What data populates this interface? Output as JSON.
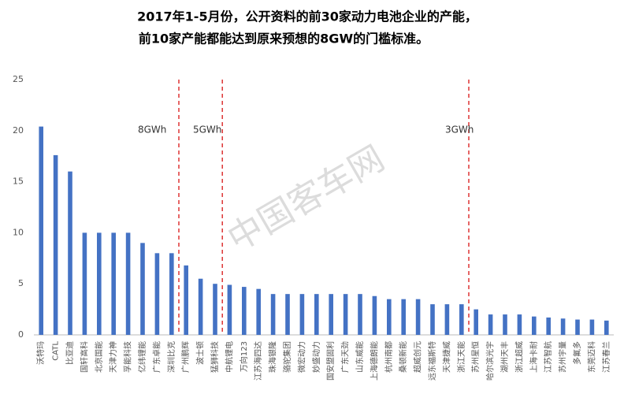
{
  "chart_data": {
    "type": "bar",
    "title_lines": [
      "2017年1-5月份，公开资料的前30家动力电池企业的产能，",
      "前10家产能都能达到原来预想的8GW的门槛标准。"
    ],
    "annotations": [
      "8GWh",
      "5GWh",
      "3GWh"
    ],
    "watermark": "中国客车网",
    "categories": [
      "沃特玛",
      "CATL",
      "比亚迪",
      "国轩高科",
      "北京国能",
      "天津力神",
      "孚能科技",
      "亿纬锂能",
      "广东卓能",
      "深圳比克",
      "广州鹏辉",
      "波士顿",
      "猛狮科技",
      "中航锂电",
      "万向123",
      "江苏海四达",
      "珠海银隆",
      "骆驼集团",
      "微宏动力",
      "妙盛动力",
      "国安盟固利",
      "广东天劲",
      "山东威能",
      "上海德朗能",
      "杭州南都",
      "桑顿新能",
      "超威创元",
      "远东福斯特",
      "天津捷威",
      "浙江天能",
      "苏州星恒",
      "哈尔滨光宇",
      "湖州天丰",
      "浙江超威",
      "上海卡耐",
      "江苏智航",
      "苏州宇量",
      "多氟多",
      "东莞迈科",
      "江苏春兰"
    ],
    "values": [
      20.4,
      17.6,
      16,
      10,
      10,
      10,
      10,
      9,
      8,
      8,
      6.8,
      5.5,
      5,
      4.9,
      4.7,
      4.5,
      4,
      4,
      4,
      4,
      4,
      4,
      4,
      3.8,
      3.5,
      3.5,
      3.5,
      3,
      3,
      3,
      2.5,
      2,
      2,
      2,
      1.8,
      1.7,
      1.6,
      1.5,
      1.5,
      1.4
    ],
    "color": "#4472c4",
    "ylim": [
      0,
      25
    ],
    "yticks": [
      0,
      5,
      10,
      15,
      20,
      25
    ],
    "grid": false
  }
}
